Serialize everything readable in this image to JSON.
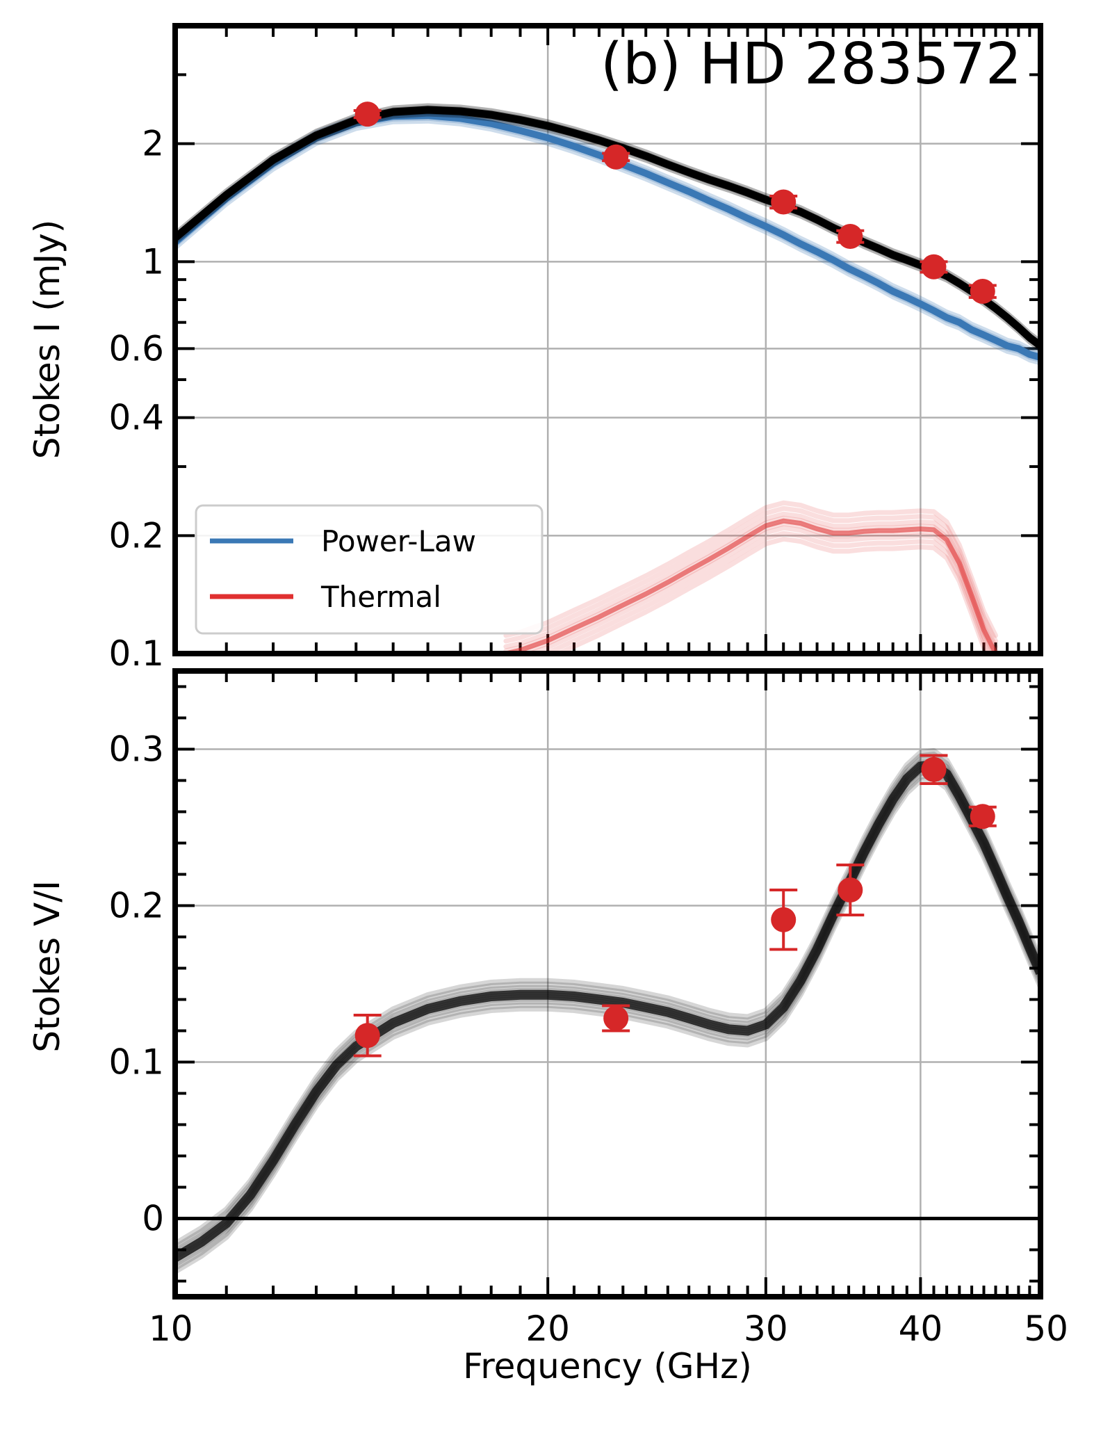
{
  "chart_data": [
    {
      "type": "line",
      "title": "(b) HD 283572",
      "xlabel": "",
      "ylabel": "Stokes I (mJy)",
      "xscale": "log",
      "yscale": "log",
      "xlim": [
        10,
        50
      ],
      "ylim": [
        0.1,
        4.0
      ],
      "xticks": [
        10,
        20,
        30,
        40,
        50
      ],
      "xtick_labels": [
        "",
        "",
        "",
        "",
        ""
      ],
      "yticks": [
        0.1,
        0.2,
        0.4,
        0.6,
        1,
        2
      ],
      "ytick_labels": [
        "0.1",
        "0.2",
        "0.4",
        "0.6",
        "1",
        "2"
      ],
      "grid": true,
      "legend": {
        "placement": "lower-left",
        "entries": [
          "Power-Law",
          "Thermal"
        ]
      },
      "colors": {
        "data": "#d62728",
        "total": "#000000",
        "power_law": "#3a78b5",
        "thermal": "#e03030"
      },
      "series": [
        {
          "kind": "total_model",
          "x": [
            10,
            11,
            12,
            13,
            14,
            15,
            16,
            17,
            18,
            19,
            20,
            21,
            22,
            23,
            24,
            25,
            26,
            27,
            28,
            29,
            30,
            31,
            32,
            33,
            34,
            35,
            36,
            37,
            38,
            39,
            40,
            41,
            42,
            43,
            44,
            45,
            46,
            47,
            48,
            49,
            50
          ],
          "y": [
            1.15,
            1.48,
            1.82,
            2.1,
            2.3,
            2.41,
            2.44,
            2.42,
            2.37,
            2.3,
            2.22,
            2.13,
            2.04,
            1.95,
            1.86,
            1.77,
            1.69,
            1.62,
            1.56,
            1.5,
            1.44,
            1.39,
            1.34,
            1.28,
            1.22,
            1.17,
            1.12,
            1.08,
            1.04,
            1.01,
            0.98,
            0.95,
            0.92,
            0.88,
            0.84,
            0.8,
            0.76,
            0.72,
            0.68,
            0.64,
            0.61
          ]
        },
        {
          "name": "Power-Law",
          "kind": "power_law",
          "x": [
            10,
            11,
            12,
            13,
            14,
            15,
            16,
            17,
            18,
            19,
            20,
            21,
            22,
            23,
            24,
            25,
            26,
            27,
            28,
            29,
            30,
            31,
            32,
            33,
            34,
            35,
            36,
            37,
            38,
            39,
            40,
            41,
            42,
            43,
            44,
            45,
            46,
            47,
            48,
            49,
            50
          ],
          "y": [
            1.12,
            1.45,
            1.78,
            2.07,
            2.26,
            2.35,
            2.36,
            2.32,
            2.25,
            2.16,
            2.07,
            1.97,
            1.87,
            1.77,
            1.68,
            1.59,
            1.51,
            1.43,
            1.36,
            1.29,
            1.23,
            1.17,
            1.11,
            1.06,
            1.01,
            0.96,
            0.92,
            0.88,
            0.84,
            0.81,
            0.78,
            0.75,
            0.72,
            0.7,
            0.67,
            0.65,
            0.63,
            0.61,
            0.6,
            0.58,
            0.57
          ]
        },
        {
          "name": "Thermal",
          "kind": "thermal",
          "x": [
            18.5,
            19,
            20,
            21,
            22,
            23,
            24,
            25,
            26,
            27,
            28,
            29,
            30,
            31,
            32,
            33,
            34,
            35,
            36,
            37,
            38,
            39,
            40,
            41,
            42,
            43,
            44,
            45,
            46
          ],
          "y": [
            0.1,
            0.102,
            0.108,
            0.116,
            0.124,
            0.133,
            0.142,
            0.152,
            0.163,
            0.174,
            0.186,
            0.199,
            0.212,
            0.218,
            0.215,
            0.208,
            0.203,
            0.203,
            0.205,
            0.206,
            0.206,
            0.207,
            0.208,
            0.207,
            0.195,
            0.17,
            0.14,
            0.115,
            0.1
          ]
        },
        {
          "name": "Stokes I data",
          "kind": "data",
          "x": [
            14.3,
            22.7,
            31.0,
            35.1,
            41.0,
            44.9
          ],
          "y": [
            2.38,
            1.85,
            1.42,
            1.16,
            0.97,
            0.84
          ],
          "yerr": [
            0.05,
            0.04,
            0.05,
            0.04,
            0.03,
            0.03
          ]
        }
      ]
    },
    {
      "type": "line",
      "xlabel": "Frequency (GHz)",
      "ylabel": "Stokes V/I",
      "xscale": "log",
      "xlim": [
        10,
        50
      ],
      "ylim": [
        -0.05,
        0.35
      ],
      "xticks": [
        10,
        20,
        30,
        40,
        50
      ],
      "xtick_labels": [
        "10",
        "20",
        "30",
        "40",
        "50"
      ],
      "yticks": [
        0,
        0.1,
        0.2,
        0.3
      ],
      "ytick_labels": [
        "0",
        "0.1",
        "0.2",
        "0.3"
      ],
      "grid": true,
      "zero_line": true,
      "colors": {
        "data": "#d62728",
        "model": "#000000"
      },
      "series": [
        {
          "kind": "model",
          "x": [
            10,
            10.5,
            11,
            11.5,
            12,
            12.5,
            13,
            13.5,
            14,
            15,
            16,
            17,
            18,
            19,
            20,
            21,
            22,
            23,
            24,
            25,
            26,
            27,
            28,
            29,
            30,
            31,
            32,
            33,
            34,
            35,
            36,
            37,
            38,
            39,
            40,
            41,
            42,
            43,
            44,
            45,
            46,
            47,
            48,
            49,
            50
          ],
          "y": [
            -0.025,
            -0.015,
            -0.003,
            0.015,
            0.037,
            0.06,
            0.081,
            0.098,
            0.11,
            0.125,
            0.134,
            0.139,
            0.142,
            0.143,
            0.143,
            0.142,
            0.14,
            0.138,
            0.135,
            0.132,
            0.128,
            0.124,
            0.121,
            0.12,
            0.124,
            0.135,
            0.152,
            0.172,
            0.194,
            0.214,
            0.234,
            0.252,
            0.268,
            0.281,
            0.289,
            0.29,
            0.284,
            0.27,
            0.255,
            0.24,
            0.223,
            0.206,
            0.19,
            0.173,
            0.157
          ]
        },
        {
          "name": "Stokes V/I data",
          "kind": "data",
          "x": [
            14.3,
            22.7,
            31.0,
            35.1,
            41.0,
            44.9
          ],
          "y": [
            0.117,
            0.128,
            0.191,
            0.21,
            0.287,
            0.257
          ],
          "yerr": [
            0.013,
            0.008,
            0.019,
            0.016,
            0.009,
            0.006
          ]
        }
      ]
    }
  ]
}
